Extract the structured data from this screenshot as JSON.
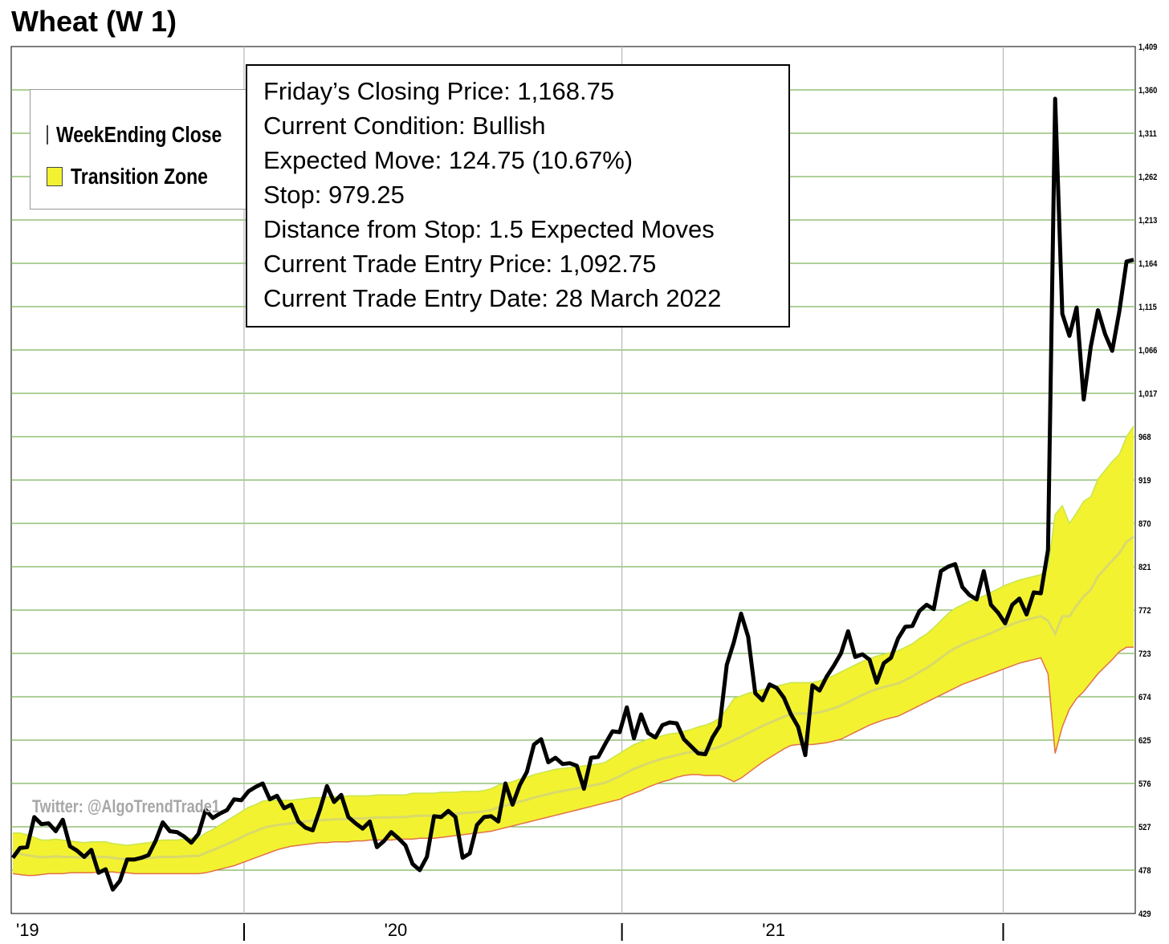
{
  "chart_data": {
    "type": "line",
    "title": "Wheat (W 1)",
    "xlabel": "",
    "ylabel": "",
    "ylim": [
      429,
      1409
    ],
    "y_ticks": [
      "1,409",
      "1,360",
      "1,311",
      "1,262",
      "1,213",
      "1,164",
      "1,115",
      "1,066",
      "1,017",
      "968",
      "919",
      "870",
      "821",
      "772",
      "723",
      "674",
      "625",
      "576",
      "527",
      "478",
      "429"
    ],
    "x_ticks": [
      "'19",
      "'20",
      "'21"
    ],
    "grid": true,
    "legend_placement": "top-left",
    "series": [
      {
        "name": "WeekEnding Close",
        "color": "#000000",
        "values": [
          492,
          503,
          504,
          538,
          530,
          531,
          522,
          535,
          505,
          500,
          493,
          501,
          475,
          479,
          456,
          466,
          490,
          490,
          492,
          495,
          511,
          532,
          522,
          521,
          516,
          509,
          519,
          546,
          537,
          542,
          546,
          558,
          557,
          567,
          572,
          576,
          558,
          562,
          548,
          552,
          533,
          526,
          523,
          546,
          573,
          555,
          563,
          538,
          531,
          525,
          533,
          504,
          511,
          521,
          514,
          506,
          485,
          478,
          493,
          539,
          538,
          545,
          538,
          492,
          497,
          529,
          538,
          539,
          533,
          576,
          552,
          574,
          589,
          620,
          626,
          600,
          605,
          598,
          599,
          596,
          570,
          605,
          606,
          621,
          635,
          634,
          662,
          627,
          654,
          633,
          628,
          642,
          645,
          644,
          626,
          618,
          610,
          609,
          628,
          641,
          710,
          736,
          768,
          742,
          678,
          670,
          688,
          684,
          673,
          654,
          640,
          608,
          687,
          681,
          697,
          709,
          723,
          748,
          719,
          722,
          716,
          690,
          712,
          718,
          740,
          753,
          754,
          771,
          778,
          773,
          816,
          821,
          824,
          798,
          789,
          784,
          816,
          778,
          769,
          757,
          778,
          785,
          767,
          792,
          791,
          840,
          1350,
          1107,
          1082,
          1114,
          1010,
          1070,
          1111,
          1084,
          1065,
          1110,
          1166,
          1168
        ]
      },
      {
        "name": "Transition Zone",
        "color": "#f2f231",
        "upper": [
          520,
          520,
          518,
          515,
          512,
          512,
          513,
          512,
          511,
          510,
          509,
          510,
          510,
          510,
          508,
          507,
          506,
          507,
          508,
          509,
          511,
          512,
          512,
          512,
          513,
          514,
          514,
          520,
          524,
          529,
          534,
          539,
          544,
          549,
          552,
          556,
          557,
          557,
          557,
          557,
          558,
          559,
          560,
          560,
          561,
          561,
          561,
          562,
          562,
          562,
          562,
          563,
          563,
          563,
          563,
          563,
          565,
          565,
          565,
          565,
          566,
          566,
          566,
          567,
          567,
          567,
          568,
          570,
          574,
          576,
          578,
          581,
          583,
          586,
          588,
          590,
          592,
          593,
          594,
          595,
          596,
          597,
          598,
          600,
          605,
          610,
          615,
          620,
          623,
          626,
          628,
          630,
          632,
          633,
          635,
          637,
          640,
          642,
          645,
          650,
          660,
          672,
          675,
          678,
          680,
          682,
          684,
          686,
          688,
          690,
          690,
          690,
          690,
          692,
          695,
          698,
          702,
          706,
          710,
          714,
          717,
          720,
          722,
          724,
          726,
          730,
          734,
          740,
          745,
          752,
          760,
          768,
          774,
          778,
          782,
          785,
          788,
          792,
          796,
          800,
          803,
          806,
          808,
          810,
          812,
          820,
          880,
          890,
          870,
          882,
          895,
          900,
          920,
          930,
          940,
          948,
          968,
          980
        ],
        "lower": [
          474,
          473,
          472,
          472,
          473,
          474,
          474,
          474,
          475,
          475,
          475,
          475,
          476,
          476,
          476,
          475,
          475,
          474,
          474,
          474,
          474,
          474,
          474,
          474,
          474,
          474,
          474,
          475,
          477,
          479,
          481,
          483,
          486,
          489,
          492,
          495,
          498,
          501,
          503,
          505,
          506,
          507,
          508,
          509,
          509,
          510,
          510,
          510,
          511,
          511,
          512,
          512,
          512,
          512,
          513,
          513,
          513,
          514,
          514,
          514,
          515,
          516,
          517,
          518,
          519,
          520,
          521,
          522,
          524,
          526,
          528,
          530,
          532,
          534,
          536,
          538,
          540,
          542,
          544,
          546,
          548,
          550,
          552,
          554,
          556,
          558,
          562,
          565,
          568,
          572,
          575,
          578,
          580,
          583,
          585,
          586,
          586,
          585,
          585,
          585,
          582,
          578,
          582,
          588,
          594,
          600,
          605,
          610,
          615,
          619,
          620,
          620,
          620,
          621,
          622,
          624,
          626,
          630,
          634,
          638,
          642,
          645,
          648,
          650,
          652,
          656,
          660,
          664,
          668,
          672,
          676,
          680,
          684,
          688,
          691,
          694,
          697,
          700,
          703,
          706,
          709,
          712,
          714,
          716,
          718,
          700,
          610,
          640,
          660,
          672,
          680,
          690,
          700,
          708,
          716,
          725,
          730,
          730
        ]
      }
    ]
  },
  "info_box": {
    "lines": [
      "Friday’s Closing Price: 1,168.75",
      "Current Condition: Bullish",
      "Expected Move: 124.75 (10.67%)",
      "Stop: 979.25",
      "Distance from Stop: 1.5 Expected Moves",
      "Current Trade Entry Price: 1,092.75",
      "Current Trade Entry Date: 28 March 2022"
    ]
  },
  "legend": {
    "items": [
      {
        "label": "WeekEnding Close",
        "color": "#000000"
      },
      {
        "label": "Transition Zone",
        "color": "#f2f231"
      }
    ]
  },
  "watermark": "Twitter: @AlgoTrendTrade1"
}
